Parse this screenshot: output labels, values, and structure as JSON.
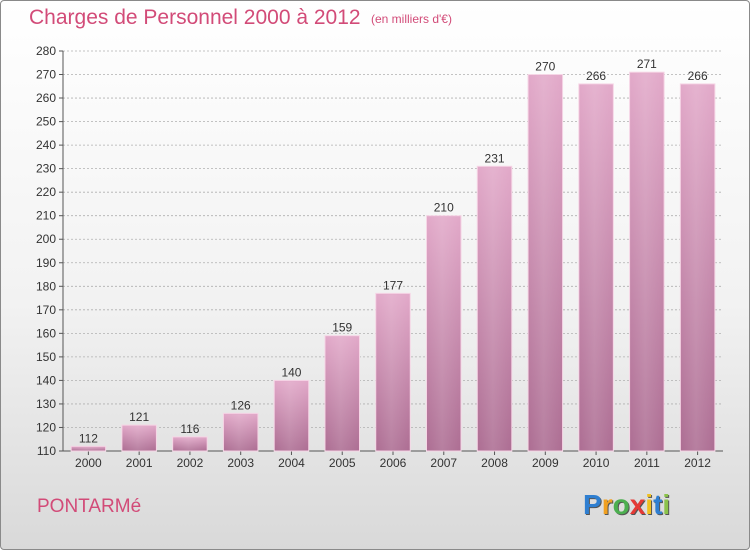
{
  "title": "Charges de Personnel 2000 à 2012",
  "unit": "(en milliers d'€)",
  "commune": "PONTARMé",
  "logo": {
    "letters": [
      "P",
      "r",
      "o",
      "x",
      "i",
      "t",
      "i"
    ],
    "colors": [
      "#2f7fd1",
      "#f0a020",
      "#4caf50",
      "#e53935",
      "#f0c020",
      "#2f7fd1",
      "#8bc34a"
    ]
  },
  "colors": {
    "bar": "#c77da5",
    "title": "#d24b78",
    "grid": "#b0b0b0"
  },
  "chart_data": {
    "type": "bar",
    "categories": [
      "2000",
      "2001",
      "2002",
      "2003",
      "2004",
      "2005",
      "2006",
      "2007",
      "2008",
      "2009",
      "2010",
      "2011",
      "2012"
    ],
    "values": [
      112,
      121,
      116,
      126,
      140,
      159,
      177,
      210,
      231,
      270,
      266,
      271,
      266
    ],
    "data_labels": [
      "112",
      "121",
      "116",
      "126",
      "140",
      "159",
      "177",
      "210",
      "231",
      "270",
      "266",
      "271",
      "266"
    ],
    "title": "Charges de Personnel 2000 à 2012",
    "xlabel": "",
    "ylabel": "",
    "ylim": [
      110,
      280
    ],
    "yticks": [
      110,
      120,
      130,
      140,
      150,
      160,
      170,
      180,
      190,
      200,
      210,
      220,
      230,
      240,
      250,
      260,
      270,
      280
    ],
    "grid": true
  }
}
